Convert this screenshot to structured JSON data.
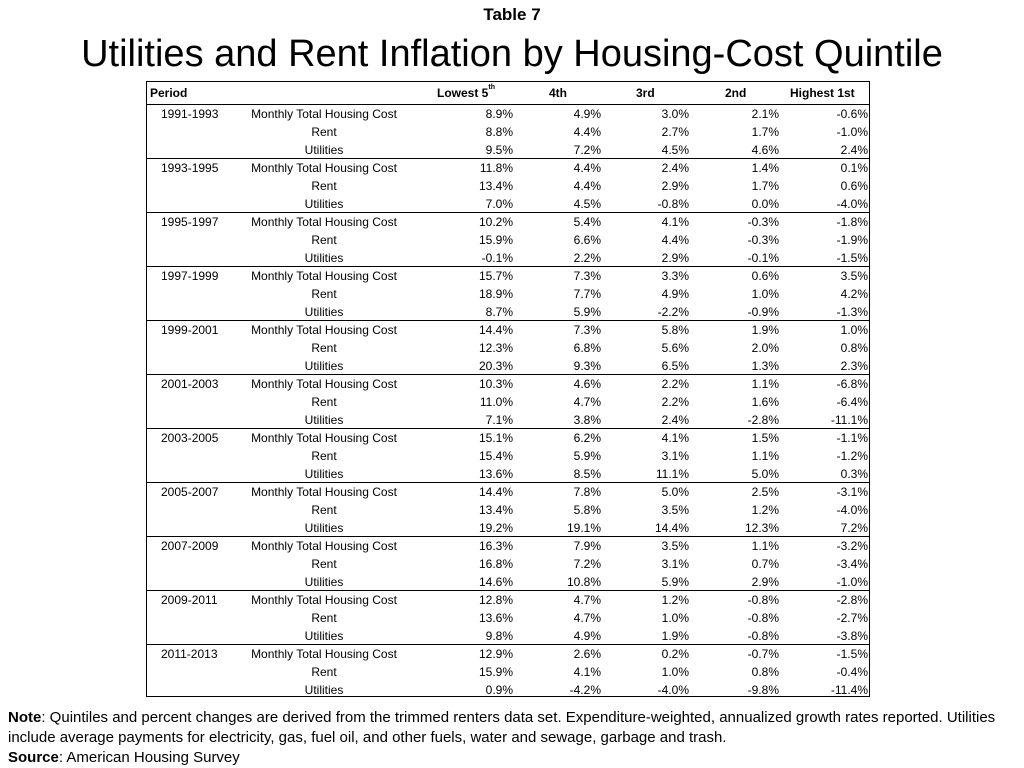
{
  "header": {
    "label": "Table 7",
    "title": "Utilities and Rent Inflation by Housing-Cost Quintile"
  },
  "table": {
    "columns": {
      "period": "Period",
      "lowest": "Lowest 5",
      "lowest_sup": "th",
      "fourth": "4th",
      "third": "3rd",
      "second": "2nd",
      "highest": "Highest 1st"
    },
    "row_labels": [
      "Monthly Total Housing Cost",
      "Rent",
      "Utilities"
    ],
    "groups": [
      {
        "period": "1991-1993",
        "rows": [
          [
            "8.9%",
            "4.9%",
            "3.0%",
            "2.1%",
            "-0.6%"
          ],
          [
            "8.8%",
            "4.4%",
            "2.7%",
            "1.7%",
            "-1.0%"
          ],
          [
            "9.5%",
            "7.2%",
            "4.5%",
            "4.6%",
            "2.4%"
          ]
        ]
      },
      {
        "period": "1993-1995",
        "rows": [
          [
            "11.8%",
            "4.4%",
            "2.4%",
            "1.4%",
            "0.1%"
          ],
          [
            "13.4%",
            "4.4%",
            "2.9%",
            "1.7%",
            "0.6%"
          ],
          [
            "7.0%",
            "4.5%",
            "-0.8%",
            "0.0%",
            "-4.0%"
          ]
        ]
      },
      {
        "period": "1995-1997",
        "rows": [
          [
            "10.2%",
            "5.4%",
            "4.1%",
            "-0.3%",
            "-1.8%"
          ],
          [
            "15.9%",
            "6.6%",
            "4.4%",
            "-0.3%",
            "-1.9%"
          ],
          [
            "-0.1%",
            "2.2%",
            "2.9%",
            "-0.1%",
            "-1.5%"
          ]
        ]
      },
      {
        "period": "1997-1999",
        "rows": [
          [
            "15.7%",
            "7.3%",
            "3.3%",
            "0.6%",
            "3.5%"
          ],
          [
            "18.9%",
            "7.7%",
            "4.9%",
            "1.0%",
            "4.2%"
          ],
          [
            "8.7%",
            "5.9%",
            "-2.2%",
            "-0.9%",
            "-1.3%"
          ]
        ]
      },
      {
        "period": "1999-2001",
        "rows": [
          [
            "14.4%",
            "7.3%",
            "5.8%",
            "1.9%",
            "1.0%"
          ],
          [
            "12.3%",
            "6.8%",
            "5.6%",
            "2.0%",
            "0.8%"
          ],
          [
            "20.3%",
            "9.3%",
            "6.5%",
            "1.3%",
            "2.3%"
          ]
        ]
      },
      {
        "period": "2001-2003",
        "rows": [
          [
            "10.3%",
            "4.6%",
            "2.2%",
            "1.1%",
            "-6.8%"
          ],
          [
            "11.0%",
            "4.7%",
            "2.2%",
            "1.6%",
            "-6.4%"
          ],
          [
            "7.1%",
            "3.8%",
            "2.4%",
            "-2.8%",
            "-11.1%"
          ]
        ]
      },
      {
        "period": "2003-2005",
        "rows": [
          [
            "15.1%",
            "6.2%",
            "4.1%",
            "1.5%",
            "-1.1%"
          ],
          [
            "15.4%",
            "5.9%",
            "3.1%",
            "1.1%",
            "-1.2%"
          ],
          [
            "13.6%",
            "8.5%",
            "11.1%",
            "5.0%",
            "0.3%"
          ]
        ]
      },
      {
        "period": "2005-2007",
        "rows": [
          [
            "14.4%",
            "7.8%",
            "5.0%",
            "2.5%",
            "-3.1%"
          ],
          [
            "13.4%",
            "5.8%",
            "3.5%",
            "1.2%",
            "-4.0%"
          ],
          [
            "19.2%",
            "19.1%",
            "14.4%",
            "12.3%",
            "7.2%"
          ]
        ]
      },
      {
        "period": "2007-2009",
        "rows": [
          [
            "16.3%",
            "7.9%",
            "3.5%",
            "1.1%",
            "-3.2%"
          ],
          [
            "16.8%",
            "7.2%",
            "3.1%",
            "0.7%",
            "-3.4%"
          ],
          [
            "14.6%",
            "10.8%",
            "5.9%",
            "2.9%",
            "-1.0%"
          ]
        ]
      },
      {
        "period": "2009-2011",
        "rows": [
          [
            "12.8%",
            "4.7%",
            "1.2%",
            "-0.8%",
            "-2.8%"
          ],
          [
            "13.6%",
            "4.7%",
            "1.0%",
            "-0.8%",
            "-2.7%"
          ],
          [
            "9.8%",
            "4.9%",
            "1.9%",
            "-0.8%",
            "-3.8%"
          ]
        ]
      },
      {
        "period": "2011-2013",
        "rows": [
          [
            "12.9%",
            "2.6%",
            "0.2%",
            "-0.7%",
            "-1.5%"
          ],
          [
            "15.9%",
            "4.1%",
            "1.0%",
            "0.8%",
            "-0.4%"
          ],
          [
            "0.9%",
            "-4.2%",
            "-4.0%",
            "-9.8%",
            "-11.4%"
          ]
        ]
      }
    ]
  },
  "footnote": {
    "note_label": "Note",
    "note_text": ": Quintiles and percent changes are derived from the trimmed renters data set. Expenditure-weighted, annualized growth rates reported. Utilities include average payments for  electricity, gas, fuel oil, and other fuels, water and sewage, garbage and trash.",
    "source_label": "Source",
    "source_text": ": American Housing Survey"
  }
}
